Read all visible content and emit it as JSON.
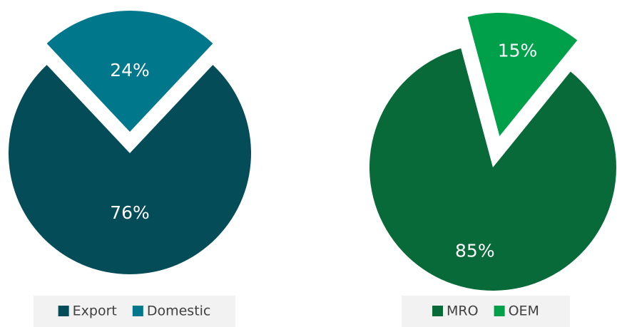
{
  "chart_data": [
    {
      "type": "pie",
      "categories": [
        "Export",
        "Domestic"
      ],
      "values": [
        76,
        24
      ],
      "value_labels": [
        "76%",
        "24%"
      ],
      "colors": [
        "#034c58",
        "#00778a"
      ],
      "legend": "bottom"
    },
    {
      "type": "pie",
      "categories": [
        "MRO",
        "OEM"
      ],
      "values": [
        85,
        15
      ],
      "value_labels": [
        "85%",
        "15%"
      ],
      "colors": [
        "#086a38",
        "#00a04a"
      ],
      "legend": "bottom"
    }
  ]
}
